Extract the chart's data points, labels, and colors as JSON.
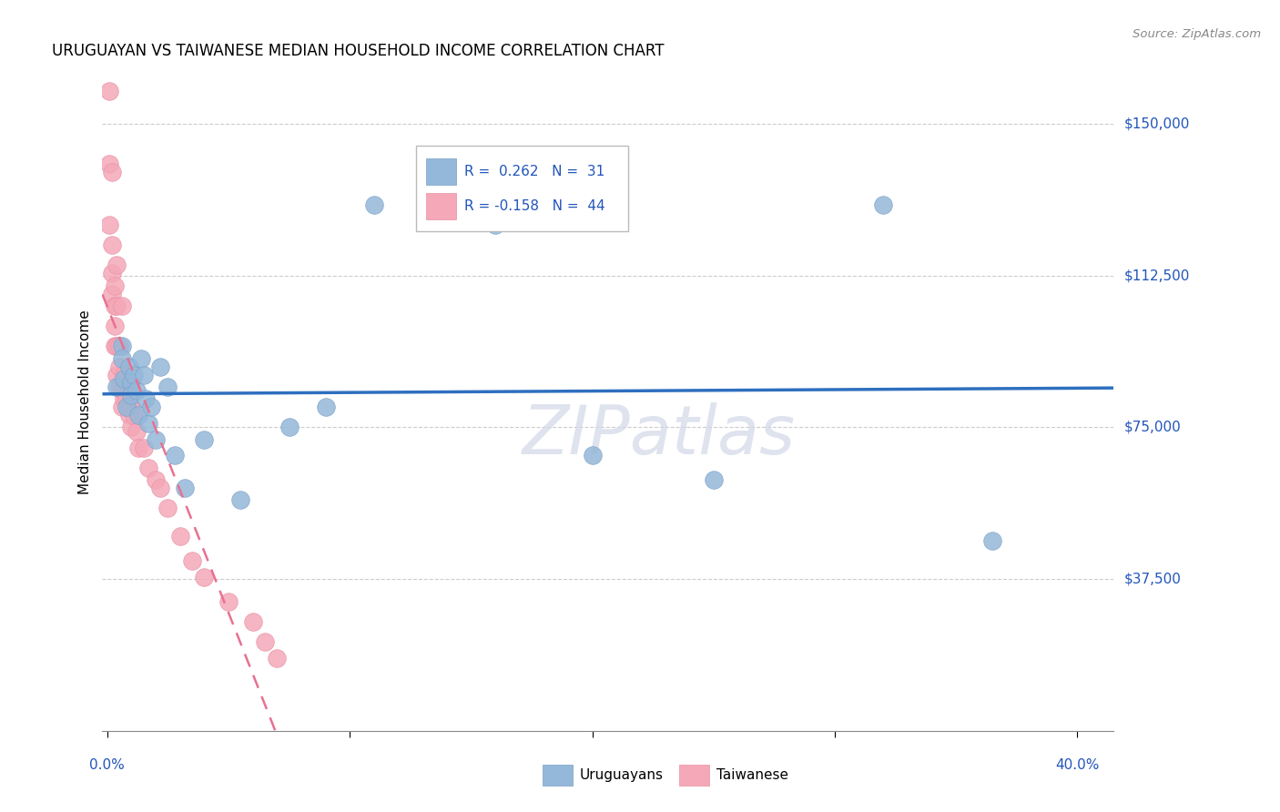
{
  "title": "URUGUAYAN VS TAIWANESE MEDIAN HOUSEHOLD INCOME CORRELATION CHART",
  "source": "Source: ZipAtlas.com",
  "ylabel": "Median Household Income",
  "y_tick_labels": [
    "$37,500",
    "$75,000",
    "$112,500",
    "$150,000"
  ],
  "y_tick_values": [
    37500,
    75000,
    112500,
    150000
  ],
  "y_min": 0,
  "y_max": 162500,
  "x_min": -0.002,
  "x_max": 0.415,
  "legend_blue_r": "R =  0.262",
  "legend_blue_n": "N =  31",
  "legend_pink_r": "R = -0.158",
  "legend_pink_n": "N =  44",
  "watermark": "ZIPatlas",
  "blue_color": "#94B8D9",
  "pink_color": "#F4A8B8",
  "blue_edge": "#7AA0C8",
  "pink_edge": "#E890A4",
  "line_blue_color": "#2E6FBF",
  "line_pink_color": "#E87090",
  "uruguayan_x": [
    0.004,
    0.006,
    0.006,
    0.007,
    0.008,
    0.009,
    0.01,
    0.01,
    0.011,
    0.012,
    0.013,
    0.014,
    0.015,
    0.016,
    0.017,
    0.018,
    0.02,
    0.022,
    0.025,
    0.028,
    0.032,
    0.04,
    0.055,
    0.075,
    0.09,
    0.11,
    0.16,
    0.2,
    0.25,
    0.32,
    0.365
  ],
  "uruguayan_y": [
    85000,
    95000,
    92000,
    87000,
    80000,
    90000,
    86000,
    83000,
    88000,
    84000,
    78000,
    92000,
    88000,
    82000,
    76000,
    80000,
    72000,
    90000,
    85000,
    68000,
    60000,
    72000,
    57000,
    75000,
    80000,
    130000,
    125000,
    68000,
    62000,
    130000,
    47000
  ],
  "taiwanese_x": [
    0.001,
    0.001,
    0.001,
    0.002,
    0.002,
    0.002,
    0.002,
    0.003,
    0.003,
    0.003,
    0.003,
    0.004,
    0.004,
    0.004,
    0.004,
    0.005,
    0.005,
    0.005,
    0.006,
    0.006,
    0.006,
    0.007,
    0.007,
    0.008,
    0.008,
    0.009,
    0.009,
    0.01,
    0.01,
    0.011,
    0.012,
    0.013,
    0.015,
    0.017,
    0.02,
    0.022,
    0.025,
    0.03,
    0.035,
    0.04,
    0.05,
    0.06,
    0.065,
    0.07
  ],
  "taiwanese_y": [
    158000,
    140000,
    125000,
    120000,
    113000,
    108000,
    138000,
    105000,
    100000,
    95000,
    110000,
    105000,
    95000,
    88000,
    115000,
    85000,
    90000,
    95000,
    84000,
    80000,
    105000,
    82000,
    88000,
    82000,
    86000,
    80000,
    78000,
    75000,
    80000,
    78000,
    74000,
    70000,
    70000,
    65000,
    62000,
    60000,
    55000,
    48000,
    42000,
    38000,
    32000,
    27000,
    22000,
    18000
  ]
}
